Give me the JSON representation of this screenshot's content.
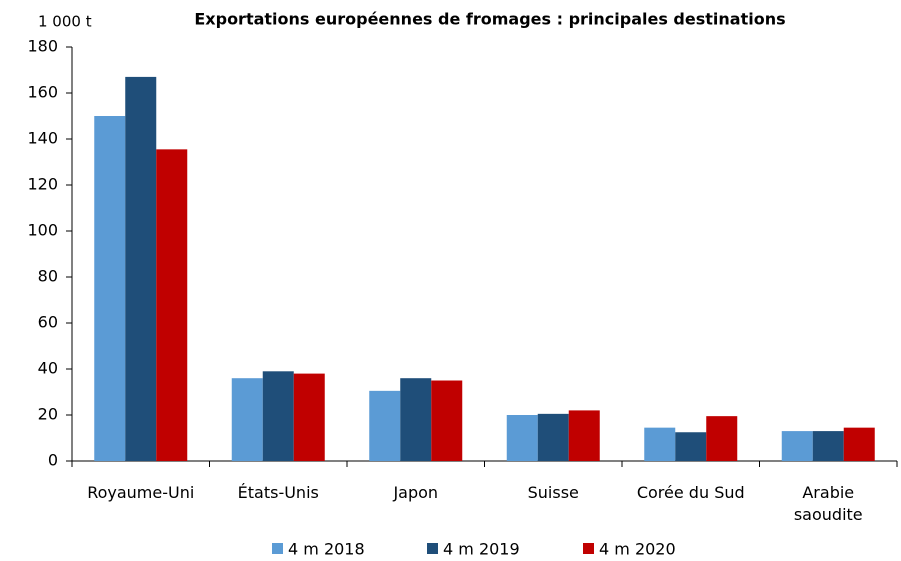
{
  "chart_data": {
    "type": "bar",
    "title": "Exportations européennes de fromages : principales destinations",
    "y_unit": "1 000 t",
    "categories": [
      "Royaume-Uni",
      "États-Unis",
      "Japon",
      "Suisse",
      "Corée du Sud",
      "Arabie\nsaoudite"
    ],
    "series": [
      {
        "name": "4 m 2018",
        "color": "#5b9bd5",
        "values": [
          150,
          36,
          30.5,
          20,
          14.5,
          13
        ]
      },
      {
        "name": "4 m 2019",
        "color": "#1f4e79",
        "values": [
          167,
          39,
          36,
          20.5,
          12.5,
          13
        ]
      },
      {
        "name": "4 m 2020",
        "color": "#c00000",
        "values": [
          135.5,
          38,
          35,
          22,
          19.5,
          14.5
        ]
      }
    ],
    "ylim": [
      0,
      180
    ],
    "yticks": [
      0,
      20,
      40,
      60,
      80,
      100,
      120,
      140,
      160,
      180
    ],
    "grid": false,
    "legend": "bottom"
  }
}
